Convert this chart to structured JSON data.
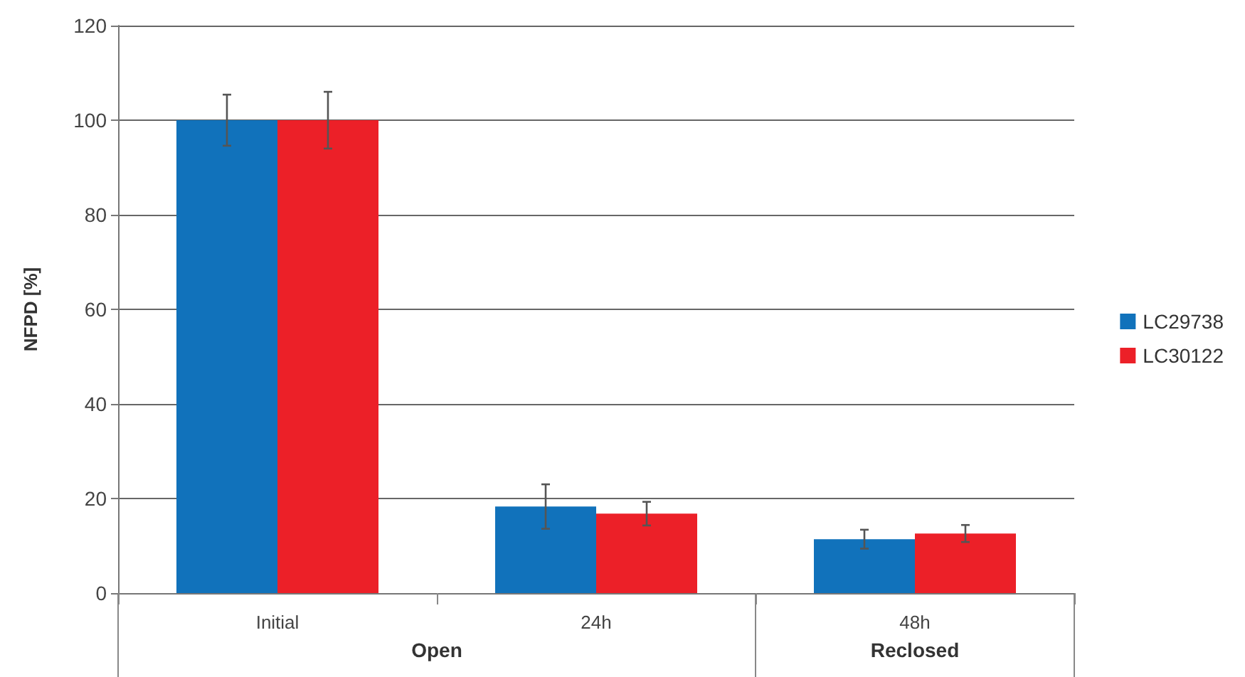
{
  "chart_data": {
    "type": "bar",
    "ylabel": "NFPD [%]",
    "categories": [
      "Initial",
      "24h",
      "48h"
    ],
    "series": [
      {
        "name": "LC29738",
        "color": "#1172bb",
        "values": [
          100,
          18.3,
          11.4
        ],
        "errors": [
          5.4,
          4.7,
          2
        ]
      },
      {
        "name": "LC30122",
        "color": "#ec2028",
        "values": [
          100,
          16.8,
          12.6
        ],
        "errors": [
          6,
          2.5,
          1.8
        ]
      }
    ],
    "annotations": [
      "Open",
      "Reclosed"
    ],
    "ylim": [
      0,
      120
    ],
    "yticks": [
      0,
      20,
      40,
      60,
      80,
      100,
      120
    ],
    "grid": "y",
    "legend": "right"
  }
}
